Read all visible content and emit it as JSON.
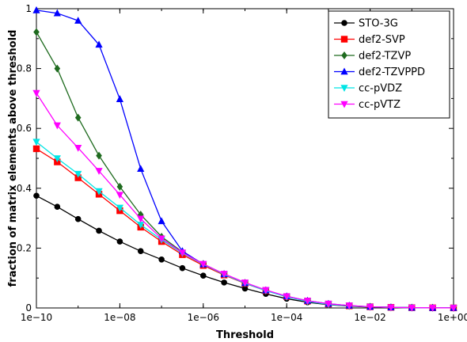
{
  "chart_data": {
    "type": "line",
    "xscale": "log",
    "xlabel": "Threshold",
    "ylabel": "fraction of matrix elements above threshold",
    "xlim": [
      1e-10,
      1
    ],
    "ylim": [
      0,
      1
    ],
    "x": [
      1e-10,
      3.16e-10,
      1e-09,
      3.16e-09,
      1e-08,
      3.16e-08,
      1e-07,
      3.16e-07,
      1e-06,
      3.16e-06,
      1e-05,
      3.16e-05,
      0.0001,
      0.000316,
      0.001,
      0.00316,
      0.01,
      0.0316,
      0.1,
      0.316,
      1
    ],
    "xticks": [
      1e-10,
      1e-08,
      1e-06,
      0.0001,
      0.01,
      1
    ],
    "xtick_labels": [
      "1e−10",
      "1e−08",
      "1e−06",
      "1e−04",
      "1e−02",
      "1e+00"
    ],
    "yticks": [
      0,
      0.2,
      0.4,
      0.6,
      0.8,
      1
    ],
    "ytick_labels": [
      "0",
      "0.2",
      "0.4",
      "0.6",
      "0.8",
      "1"
    ],
    "legend_position": "top-right",
    "grid": false,
    "series": [
      {
        "name": "STO-3G",
        "color": "#000000",
        "marker": "circle",
        "values": [
          0.375,
          0.338,
          0.297,
          0.258,
          0.222,
          0.19,
          0.162,
          0.133,
          0.108,
          0.085,
          0.065,
          0.047,
          0.031,
          0.019,
          0.011,
          0.006,
          0.003,
          0.002,
          0.001,
          0.0005,
          0.0003
        ]
      },
      {
        "name": "def2-SVP",
        "color": "#ff0000",
        "marker": "square",
        "values": [
          0.532,
          0.488,
          0.435,
          0.38,
          0.325,
          0.27,
          0.222,
          0.178,
          0.142,
          0.11,
          0.082,
          0.058,
          0.038,
          0.023,
          0.013,
          0.007,
          0.004,
          0.002,
          0.001,
          0.0005,
          0.0003
        ]
      },
      {
        "name": "def2-TZVP",
        "color": "#1f6b1f",
        "marker": "diamond",
        "values": [
          0.922,
          0.8,
          0.636,
          0.509,
          0.405,
          0.312,
          0.238,
          0.187,
          0.147,
          0.113,
          0.084,
          0.059,
          0.038,
          0.023,
          0.013,
          0.007,
          0.004,
          0.002,
          0.001,
          0.0005,
          0.0003
        ]
      },
      {
        "name": "def2-TZVPPD",
        "color": "#0000ff",
        "marker": "triangle-up",
        "values": [
          0.995,
          0.985,
          0.96,
          0.88,
          0.698,
          0.465,
          0.29,
          0.19,
          0.146,
          0.113,
          0.083,
          0.059,
          0.039,
          0.024,
          0.014,
          0.008,
          0.004,
          0.002,
          0.001,
          0.0005,
          0.0003
        ]
      },
      {
        "name": "cc-pVDZ",
        "color": "#00e5e5",
        "marker": "triangle-down",
        "values": [
          0.555,
          0.5,
          0.448,
          0.39,
          0.335,
          0.278,
          0.228,
          0.183,
          0.146,
          0.112,
          0.083,
          0.058,
          0.037,
          0.022,
          0.012,
          0.007,
          0.004,
          0.002,
          0.001,
          0.0005,
          0.0003
        ]
      },
      {
        "name": "cc-pVTZ",
        "color": "#ff00ff",
        "marker": "triangle-down",
        "values": [
          0.718,
          0.61,
          0.535,
          0.458,
          0.378,
          0.298,
          0.232,
          0.185,
          0.147,
          0.114,
          0.085,
          0.06,
          0.039,
          0.024,
          0.014,
          0.008,
          0.004,
          0.002,
          0.001,
          0.0005,
          0.0003
        ]
      }
    ]
  }
}
